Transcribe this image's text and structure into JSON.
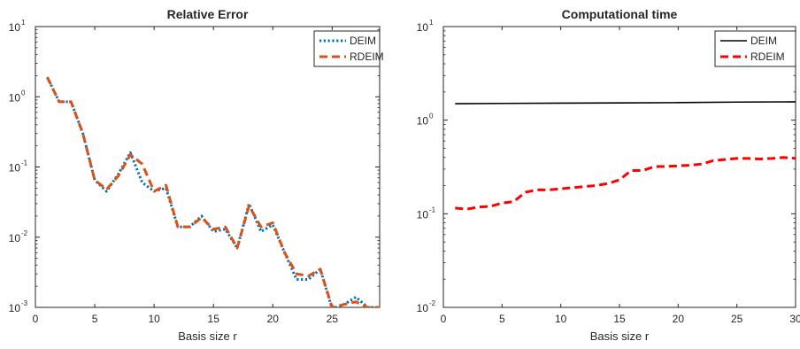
{
  "chart_data": [
    {
      "type": "line",
      "title": "Relative Error",
      "xlabel": "Basis size r",
      "ylabel": "",
      "xlim": [
        0,
        29
      ],
      "ylim": [
        0.001,
        10
      ],
      "yscale": "log",
      "xticks": [
        "0",
        "5",
        "10",
        "15",
        "20",
        "25"
      ],
      "yticks": [
        {
          "base": "10",
          "exp": "-3"
        },
        {
          "base": "10",
          "exp": "-2"
        },
        {
          "base": "10",
          "exp": "-1"
        },
        {
          "base": "10",
          "exp": "0"
        },
        {
          "base": "10",
          "exp": "1"
        }
      ],
      "legend_position": "top-right",
      "series": [
        {
          "name": "DEIM",
          "color": "#0072BD",
          "style": "dotted",
          "x": [
            1,
            2,
            3,
            4,
            5,
            6,
            7,
            8,
            9,
            10,
            11,
            12,
            13,
            14,
            15,
            16,
            17,
            18,
            19,
            20,
            21,
            22,
            23,
            24,
            25,
            26,
            27,
            28,
            29
          ],
          "y": [
            1.9,
            0.85,
            0.85,
            0.3,
            0.065,
            0.045,
            0.08,
            0.16,
            0.06,
            0.045,
            0.05,
            0.014,
            0.014,
            0.02,
            0.012,
            0.013,
            0.007,
            0.03,
            0.012,
            0.015,
            0.006,
            0.0025,
            0.0025,
            0.0035,
            0.00095,
            0.0011,
            0.0014,
            0.001,
            0.001
          ]
        },
        {
          "name": "RDEIM",
          "color": "#D95319",
          "style": "dashed",
          "x": [
            1,
            2,
            3,
            4,
            5,
            6,
            7,
            8,
            9,
            10,
            11,
            12,
            13,
            14,
            15,
            16,
            17,
            18,
            19,
            20,
            21,
            22,
            23,
            24,
            25,
            26,
            27,
            28,
            29
          ],
          "y": [
            1.9,
            0.85,
            0.85,
            0.3,
            0.065,
            0.048,
            0.075,
            0.15,
            0.11,
            0.045,
            0.055,
            0.014,
            0.014,
            0.019,
            0.013,
            0.014,
            0.007,
            0.028,
            0.014,
            0.016,
            0.006,
            0.003,
            0.0028,
            0.0035,
            0.001,
            0.0011,
            0.0012,
            0.001,
            0.001
          ]
        }
      ]
    },
    {
      "type": "line",
      "title": "Computational time",
      "xlabel": "Basis size r",
      "ylabel": "",
      "xlim": [
        0,
        30
      ],
      "ylim": [
        0.01,
        10
      ],
      "yscale": "log",
      "xticks": [
        "0",
        "5",
        "10",
        "15",
        "20",
        "25",
        "30"
      ],
      "yticks": [
        {
          "base": "10",
          "exp": "-2"
        },
        {
          "base": "10",
          "exp": "-1"
        },
        {
          "base": "10",
          "exp": "0"
        },
        {
          "base": "10",
          "exp": "1"
        }
      ],
      "legend_position": "top-right",
      "series": [
        {
          "name": "DEIM",
          "color": "#000000",
          "style": "solid",
          "x": [
            1,
            5,
            10,
            15,
            20,
            25,
            30
          ],
          "y": [
            1.5,
            1.51,
            1.52,
            1.53,
            1.54,
            1.56,
            1.57
          ]
        },
        {
          "name": "RDEIM",
          "color": "#FF0000",
          "style": "dashed",
          "x": [
            1,
            2,
            3,
            4,
            5,
            6,
            7,
            8,
            9,
            10,
            11,
            12,
            13,
            14,
            15,
            16,
            17,
            18,
            19,
            20,
            21,
            22,
            23,
            24,
            25,
            26,
            27,
            28,
            29,
            30
          ],
          "y": [
            0.115,
            0.112,
            0.118,
            0.12,
            0.13,
            0.135,
            0.17,
            0.18,
            0.18,
            0.185,
            0.19,
            0.195,
            0.2,
            0.21,
            0.23,
            0.29,
            0.29,
            0.32,
            0.32,
            0.325,
            0.33,
            0.34,
            0.37,
            0.38,
            0.39,
            0.39,
            0.385,
            0.39,
            0.4,
            0.39
          ]
        }
      ]
    }
  ]
}
